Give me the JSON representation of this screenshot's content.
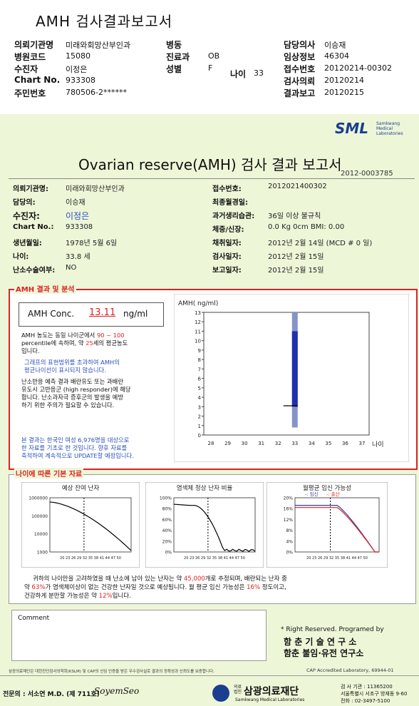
{
  "header": {
    "title": "AMH 검사결과보고서",
    "rows": [
      [
        {
          "label": "의뢰기관명",
          "value": "미래와회망산부인과"
        },
        {
          "label": "병동",
          "value": ""
        },
        {
          "label": "담당의사",
          "value": "이승재"
        }
      ],
      [
        {
          "label": "병원코드",
          "value": "15080"
        },
        {
          "label": "진료과",
          "value": "OB"
        },
        {
          "label": "임상정보",
          "value": "46304"
        }
      ],
      [
        {
          "label": "수진자",
          "value": "이정은"
        },
        {
          "label": "성별",
          "value": "F"
        },
        {
          "label": "접수번호",
          "value": "20120214-00302"
        }
      ],
      [
        {
          "label": "Chart No.",
          "value": "933308"
        },
        {
          "label": "",
          "value": ""
        },
        {
          "label": "검사의뢰",
          "value": "20120214"
        }
      ],
      [
        {
          "label": "주민번호",
          "value": "780506-2******"
        },
        {
          "label": "",
          "value": ""
        },
        {
          "label": "결과보고",
          "value": "20120215"
        }
      ]
    ],
    "age_label": "나이",
    "age_value": "33"
  },
  "report": {
    "logo": "SML",
    "logo_sub": "Samkwang Medical Laboratories",
    "title": "Ovarian reserve(AMH) 검사 결과 보고서",
    "report_no": "2012-0003785",
    "left": [
      {
        "label": "의뢰기관명:",
        "value": "미래와회망산부인과"
      },
      {
        "label": "담당의:",
        "value": "이승재"
      },
      {
        "label": "수진자:",
        "value": "이정은"
      },
      {
        "label": "Chart No.:",
        "value": "933308"
      },
      {
        "label": "생년월일:",
        "value": "1978년 5월 6일"
      },
      {
        "label": "나이:",
        "value": "33.8 세"
      },
      {
        "label": "난소수술여부:",
        "value": "NO"
      }
    ],
    "right": [
      {
        "label": "접수번호:",
        "value": "2012021400302"
      },
      {
        "label": "최종월경일:",
        "value": ""
      },
      {
        "label": "과거생리습관:",
        "value": "36일 이상 불규칙"
      },
      {
        "label": "체중/신장:",
        "value": "0.0 Kg        0cm    BMI:  0.00"
      },
      {
        "label": "채취일자:",
        "value": "2012년 2월 14일   (MCD # 0 일)"
      },
      {
        "label": "검사일자:",
        "value": "2012년 2월 15일"
      },
      {
        "label": "보고일자:",
        "value": "2012년 2월 15일"
      }
    ]
  },
  "amh": {
    "section_title": "AMH 결과 및 분석",
    "conc_label": "AMH Conc.",
    "conc_value": "13.11",
    "conc_unit": "ng/ml",
    "text1a": "AMH 농도는 동일 나이군에서",
    "text1b": "90 ~ 100",
    "text1c": "percentile에 속하며, 약",
    "text1d": "25",
    "text1e": "세의 평균농도",
    "text1f": "입니다.",
    "text2a": "그래프의 표현범위를 초과하여 AMH의",
    "text2b": "평균나이선이 표시되지 않습니다.",
    "text3a": "난소반응 예측 결과 배란유도 또는 과배란",
    "text3b": "유도시 고반응군 (high responder)에 해당",
    "text3c": "합니다. 난소과자극 증후군의 발생을 예방",
    "text3d": "하기 위한 주의가 필요할 수 있습니다.",
    "text4a": "본 결과는 한국인 여성 6,976명을 대상으로",
    "text4b": "한 자료를 기초로 한 것입니다. 향후 자료를",
    "text4c": "축적하여 계속적으로 UPDATE할 예정입니다."
  },
  "chart_data": [
    {
      "type": "bar",
      "ylabel": "AMH( ng/ml)",
      "xlabel": "나이",
      "x": [
        28,
        29,
        30,
        31,
        32,
        33,
        34,
        35,
        36,
        37
      ],
      "yticks": [
        0,
        1,
        2,
        3,
        4,
        5,
        6,
        7,
        8,
        9,
        10,
        11,
        12,
        13
      ],
      "ylim": [
        0,
        13
      ],
      "range_low": 0.8,
      "range_high": 13,
      "dark_low": 3,
      "dark_high": 11,
      "marker_age": 33,
      "marker_value": 3.1,
      "result_line": 13
    },
    {
      "type": "line",
      "title": "예상 잔여 난자",
      "yticks": [
        "1000000",
        "100000",
        "10000",
        "1000"
      ],
      "xticks": "20 23 26 29 32 35 38 41 44 47 50"
    },
    {
      "type": "line",
      "title": "염색체 정상 난자 비율",
      "yticks": [
        "100%",
        "80%",
        "60%",
        "40%",
        "20%",
        "0%"
      ],
      "xticks": "20 23 26 29 32 35 38 41 44 47 50"
    },
    {
      "type": "line",
      "title": "월평균 임신 가능성",
      "legend": [
        "임신",
        "출산"
      ],
      "yticks": [
        "20%",
        "16%",
        "12%",
        "8%",
        "4%",
        "0%"
      ],
      "xticks": "20 23 26 29 32 35 38 41 44 47 50"
    }
  ],
  "basic": {
    "section_title": "나이에 따른 기본 자료",
    "s1": "귀하의 나이만을 고려하였을 때 난소에 남아 있는 난자는 약",
    "s1v": "45,000",
    "s1e": "개로 추정되며, 배란되는 난자 중",
    "s2": "약",
    "s2v": "63%",
    "s2e": "가 염색체이상이 없는 건강한 난자일 것으로 예상됩니다. 월 평균 임신 가능성은",
    "s2v2": "16%",
    "s2e2": "정도이고,",
    "s3": "건강하게 분만할 가능성은 약",
    "s3v": "12%",
    "s3e": "입니다."
  },
  "comment": {
    "label": "Comment"
  },
  "rights": {
    "line1": "* Right Reserved. Programed by",
    "line2": "함 춘 기 술 연 구 소",
    "line3": "함춘 불임·유전 연구소"
  },
  "footer": {
    "cert": "삼광의료재단은 대한진단검사의학회(KSLM) 및 CAP의 신임 인증을 받은 우수검사실로 결과의 정확성과 신뢰도를 보증합니다.",
    "cap": "CAP  Accredited  Laboratory,  69944-01",
    "doctor": "전문의 : 서소연 M.D. (제 711호)",
    "signature": "SoyemSeo",
    "org": "삼광의료재단",
    "org_prefix": "의료 법인",
    "org_en": "Samkwang Medical Laboratories",
    "reg": "검 사 기관 : 11365200",
    "addr": "서울특별시 서초구 방재동 9-60",
    "tel": "전화 : 02-3497-5100"
  }
}
